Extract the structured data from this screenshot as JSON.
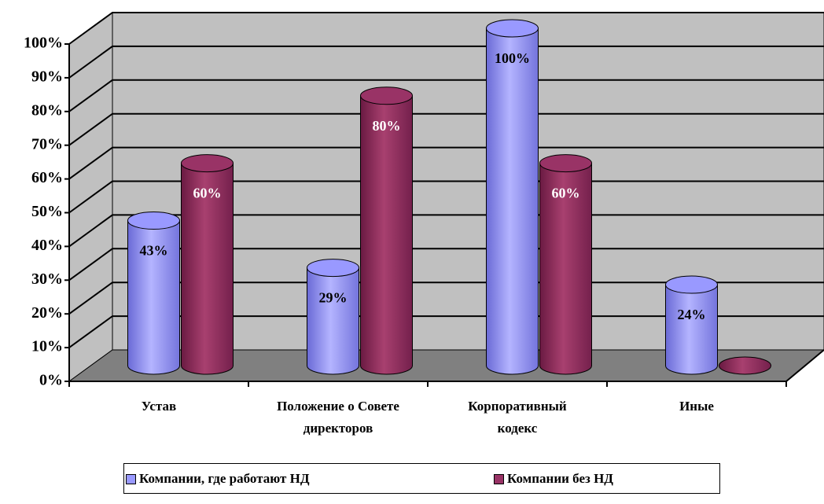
{
  "chart_data": {
    "type": "bar3d-cylinder",
    "categories": [
      "Устав",
      "Положение о Совете директоров",
      "Корпоративный кодекс",
      "Иные"
    ],
    "series": [
      {
        "name": "Компании, где работают НД",
        "color": "#9999ff",
        "values": [
          43,
          29,
          100,
          24
        ],
        "value_labels": [
          "43%",
          "29%",
          "100%",
          "24%"
        ]
      },
      {
        "name": "Компании без НД",
        "color": "#993366",
        "values": [
          60,
          80,
          60,
          0
        ],
        "value_labels": [
          "60%",
          "80%",
          "60%",
          null
        ]
      }
    ],
    "ylim": [
      0,
      100
    ],
    "yticks": [
      {
        "value": 0,
        "label": "0%"
      },
      {
        "value": 10,
        "label": "10%"
      },
      {
        "value": 20,
        "label": "20%"
      },
      {
        "value": 30,
        "label": "30%"
      },
      {
        "value": 40,
        "label": "40%"
      },
      {
        "value": 50,
        "label": "50%"
      },
      {
        "value": 60,
        "label": "60%"
      },
      {
        "value": 70,
        "label": "70%"
      },
      {
        "value": 80,
        "label": "80%"
      },
      {
        "value": 90,
        "label": "90%"
      },
      {
        "value": 100,
        "label": "100%"
      }
    ],
    "grid": true,
    "legend": "bottom"
  }
}
